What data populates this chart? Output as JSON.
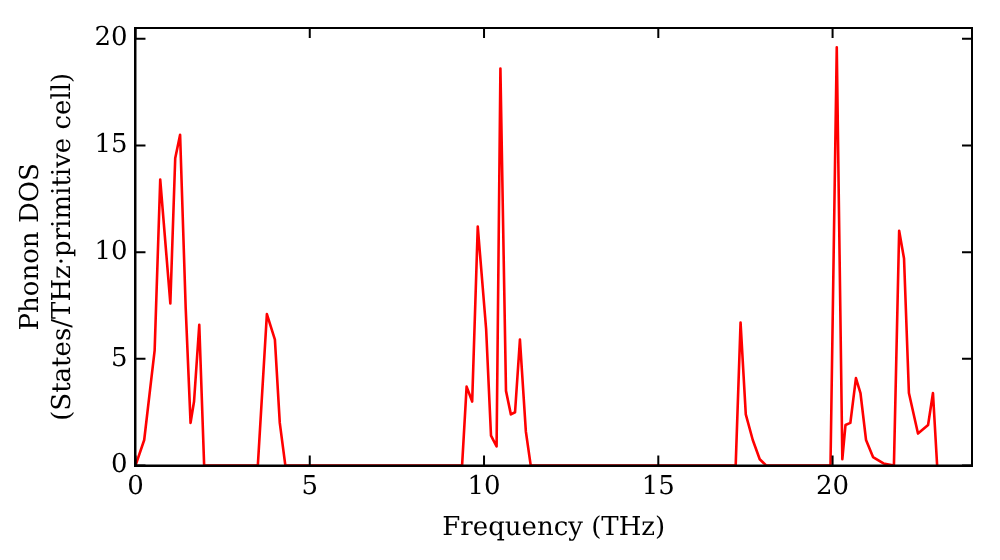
{
  "chart_data": {
    "type": "line",
    "xlabel": "Frequency (THz)",
    "ylabel": "Phonon DOS\n(States/THz·primitive cell)",
    "x": [
      0,
      0.25,
      0.45,
      0.55,
      0.71,
      1.0,
      1.14,
      1.28,
      1.44,
      1.58,
      1.68,
      1.83,
      1.97,
      3.51,
      3.77,
      4.0,
      4.14,
      4.3,
      9.37,
      9.5,
      9.66,
      9.82,
      10.06,
      10.2,
      10.36,
      10.47,
      10.63,
      10.77,
      10.89,
      11.03,
      11.2,
      11.34,
      17.22,
      17.36,
      17.51,
      17.71,
      17.91,
      18.1,
      19.94,
      20.12,
      20.28,
      20.37,
      20.51,
      20.67,
      20.8,
      20.96,
      21.16,
      21.46,
      21.76,
      21.91,
      22.05,
      22.19,
      22.45,
      22.74,
      22.88,
      23.0
    ],
    "series": [
      {
        "color": "#ff0000",
        "values": [
          0,
          1.2,
          4,
          5.4,
          13.4,
          7.6,
          14.4,
          15.5,
          7.4,
          2.0,
          3.0,
          6.6,
          0,
          0,
          7.1,
          5.9,
          2.0,
          0,
          0,
          3.7,
          3.0,
          11.2,
          6.4,
          1.4,
          0.9,
          18.6,
          3.5,
          2.4,
          2.5,
          5.9,
          1.6,
          0,
          0,
          6.7,
          2.4,
          1.2,
          0.3,
          0,
          0,
          19.6,
          0.3,
          1.9,
          2.0,
          4.1,
          3.4,
          1.2,
          0.4,
          0.1,
          0,
          11.0,
          9.7,
          3.4,
          1.5,
          1.9,
          3.4,
          0
        ]
      }
    ],
    "xlim": [
      0,
      24
    ],
    "ylim": [
      0,
      20.5
    ],
    "xticks": [
      0,
      5,
      10,
      15,
      20
    ],
    "yticks": [
      0,
      5,
      10,
      15,
      20
    ],
    "grid": false,
    "legend": false,
    "marker": "none",
    "line_style": "solid"
  }
}
